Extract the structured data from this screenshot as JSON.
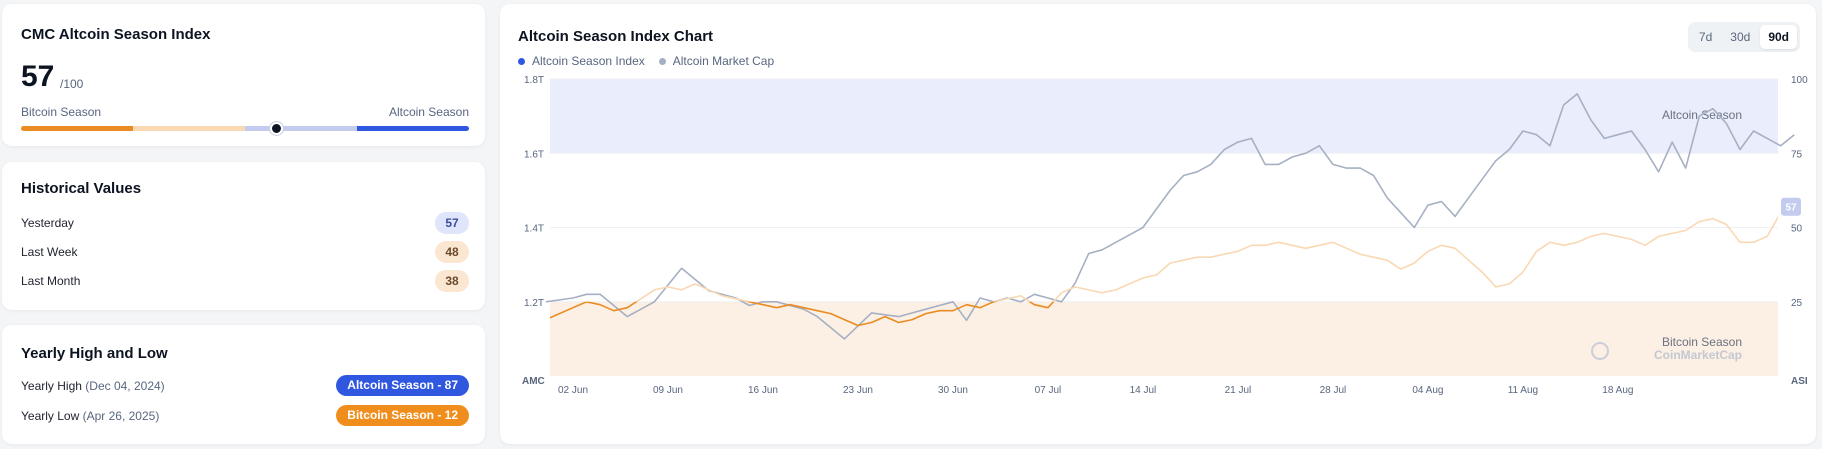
{
  "index_card": {
    "title": "CMC Altcoin Season Index",
    "value": "57",
    "value_of": "/100",
    "value_num": 57,
    "scale_left": "Bitcoin Season",
    "scale_right": "Altcoin Season",
    "colors": {
      "btc": "#ea8b24",
      "btc_light": "#f9d8b3",
      "mid": "#c3cbef",
      "alt": "#3057e0",
      "knob": "#0d1421"
    }
  },
  "historical": {
    "title": "Historical Values",
    "rows": [
      {
        "label": "Yesterday",
        "value": "57",
        "bg": "#dfe5fa",
        "fg": "#3b4f9e"
      },
      {
        "label": "Last Week",
        "value": "48",
        "bg": "#fbe6d2",
        "fg": "#6b4a2b"
      },
      {
        "label": "Last Month",
        "value": "38",
        "bg": "#fbe6d2",
        "fg": "#6b4a2b"
      }
    ]
  },
  "yearly": {
    "title": "Yearly High and Low",
    "high_label": "Yearly High",
    "high_date": "(Dec 04, 2024)",
    "high_badge": "Altcoin Season - 87",
    "low_label": "Yearly Low",
    "low_date": "(Apr 26, 2025)",
    "low_badge": "Bitcoin Season - 12",
    "colors": {
      "high": "#3057e0",
      "low": "#f08e1d"
    }
  },
  "chart": {
    "title": "Altcoin Season Index Chart",
    "legend": [
      {
        "name": "Altcoin Season Index",
        "color": "#3057e0"
      },
      {
        "name": "Altcoin Market Cap",
        "color": "#a6b0c3"
      }
    ],
    "ranges": [
      "7d",
      "30d",
      "90d"
    ],
    "active_range": "90d",
    "left_axis_end": "AMC",
    "right_axis_end": "ASI",
    "zone_top_label": "Altcoin Season",
    "zone_bottom_label": "Bitcoin Season",
    "watermark": "CoinMarketCap",
    "last_value": "57"
  },
  "chart_data": {
    "type": "line",
    "title": "Altcoin Season Index Chart",
    "x_ticks": [
      "02 Jun",
      "09 Jun",
      "16 Jun",
      "23 Jun",
      "30 Jun",
      "07 Jul",
      "14 Jul",
      "21 Jul",
      "28 Jul",
      "04 Aug",
      "11 Aug",
      "18 Aug"
    ],
    "y_left": {
      "label": "AMC",
      "ticks": [
        "1.2T",
        "1.4T",
        "1.6T",
        "1.8T"
      ],
      "min": 1.0,
      "max": 1.8,
      "unit": "T"
    },
    "y_right": {
      "label": "ASI",
      "ticks": [
        "25",
        "50",
        "75",
        "100"
      ],
      "min": 0,
      "max": 100
    },
    "zones": [
      {
        "name": "Altcoin Season",
        "from": 75,
        "to": 100,
        "color": "#e9edfc"
      },
      {
        "name": "Bitcoin Season",
        "from": 0,
        "to": 25,
        "color": "#fcefe3"
      }
    ],
    "days_per_tick": 7,
    "series": [
      {
        "name": "Altcoin Market Cap",
        "axis": "left",
        "color": "#a6b0c3",
        "x_days": [
          -2,
          0,
          1,
          2,
          4,
          6,
          8,
          10,
          12,
          13,
          14,
          15,
          17,
          18,
          20,
          22,
          24,
          25,
          26,
          27,
          28,
          29,
          30,
          31,
          32,
          33,
          34,
          35,
          36,
          37,
          38,
          39,
          40,
          41,
          42,
          44,
          45,
          46,
          47,
          48,
          49,
          50,
          51,
          52,
          53,
          54,
          55,
          56,
          57,
          58,
          59,
          60,
          61,
          62,
          63,
          64,
          65,
          66,
          67,
          68,
          69,
          70,
          71,
          72,
          73,
          74,
          75,
          76,
          77,
          78,
          79,
          80,
          81,
          82,
          83,
          84,
          85,
          86,
          87,
          88,
          89,
          90
        ],
        "values": [
          1.2,
          1.21,
          1.22,
          1.22,
          1.16,
          1.2,
          1.29,
          1.23,
          1.21,
          1.19,
          1.2,
          1.2,
          1.18,
          1.16,
          1.1,
          1.17,
          1.16,
          1.17,
          1.18,
          1.19,
          1.2,
          1.15,
          1.21,
          1.2,
          1.21,
          1.2,
          1.22,
          1.21,
          1.2,
          1.25,
          1.33,
          1.34,
          1.36,
          1.38,
          1.4,
          1.5,
          1.54,
          1.55,
          1.57,
          1.61,
          1.63,
          1.64,
          1.57,
          1.57,
          1.59,
          1.6,
          1.62,
          1.57,
          1.56,
          1.56,
          1.54,
          1.48,
          1.44,
          1.4,
          1.46,
          1.47,
          1.43,
          1.48,
          1.53,
          1.58,
          1.61,
          1.66,
          1.65,
          1.62,
          1.73,
          1.76,
          1.69,
          1.64,
          1.65,
          1.66,
          1.61,
          1.55,
          1.63,
          1.56,
          1.7,
          1.72,
          1.68,
          1.61,
          1.66,
          1.64,
          1.62,
          1.65
        ]
      },
      {
        "name": "Altcoin Season Index",
        "axis": "right",
        "color_low": "#ea8b24",
        "color_high": "#f9d8b3",
        "x_days": [
          -2,
          0,
          1,
          2,
          3,
          4,
          5,
          6,
          7,
          8,
          9,
          10,
          11,
          12,
          13,
          14,
          15,
          16,
          17,
          18,
          19,
          20,
          21,
          22,
          23,
          24,
          25,
          26,
          27,
          28,
          29,
          30,
          31,
          32,
          33,
          34,
          35,
          36,
          37,
          38,
          39,
          40,
          41,
          42,
          43,
          44,
          45,
          46,
          47,
          48,
          49,
          50,
          51,
          52,
          53,
          54,
          55,
          56,
          57,
          58,
          59,
          60,
          61,
          62,
          63,
          64,
          65,
          66,
          67,
          68,
          69,
          70,
          71,
          72,
          73,
          74,
          75,
          76,
          77,
          78,
          79,
          80,
          81,
          82,
          83,
          84,
          85,
          86,
          87,
          88,
          89,
          90
        ],
        "values": [
          19,
          23,
          25,
          24,
          22,
          23,
          26,
          29,
          30,
          29,
          31,
          29,
          27,
          26,
          25,
          24,
          23,
          24,
          23,
          22,
          21,
          19,
          17,
          18,
          20,
          18,
          19,
          21,
          22,
          22,
          24,
          23,
          25,
          26,
          27,
          24,
          23,
          28,
          30,
          29,
          28,
          29,
          31,
          33,
          34,
          38,
          39,
          40,
          40,
          41,
          42,
          44,
          44,
          45,
          44,
          43,
          44,
          45,
          43,
          41,
          40,
          39,
          36,
          38,
          42,
          44,
          43,
          39,
          35,
          30,
          31,
          35,
          42,
          45,
          44,
          45,
          47,
          48,
          47,
          46,
          44,
          47,
          48,
          49,
          52,
          53,
          51,
          45,
          45,
          47,
          55,
          57
        ]
      }
    ],
    "grid": true,
    "legend_position": "top-left"
  }
}
